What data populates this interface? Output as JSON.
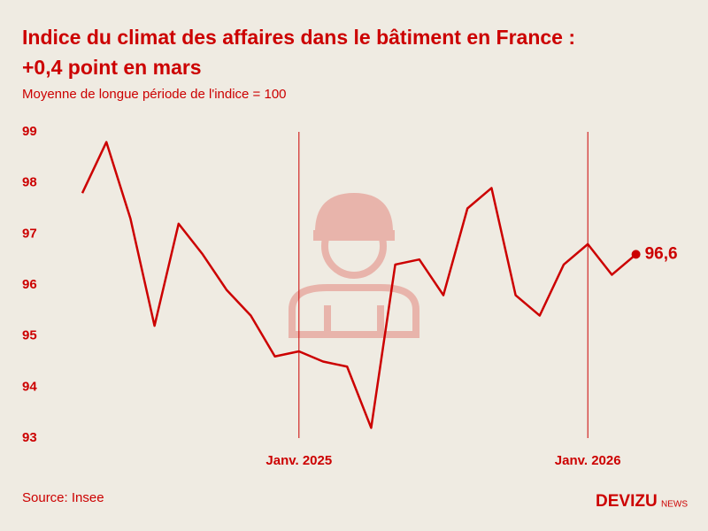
{
  "chart_data": {
    "type": "line",
    "title": [
      "Indice du climat des affaires dans le bâtiment en France :",
      "+0,4 point en mars"
    ],
    "subtitle": "Moyenne de longue période de l'indice = 100",
    "categories": [
      null,
      null,
      null,
      null,
      null,
      null,
      null,
      null,
      null,
      "Janv. 2025",
      null,
      null,
      null,
      null,
      null,
      null,
      null,
      null,
      null,
      null,
      null,
      "Janv. 2026",
      null,
      null
    ],
    "values": [
      97.8,
      98.8,
      97.3,
      95.2,
      97.2,
      96.6,
      95.9,
      95.4,
      94.6,
      94.7,
      94.5,
      94.4,
      93.2,
      96.4,
      96.5,
      95.8,
      97.5,
      97.9,
      95.8,
      95.4,
      96.4,
      96.8,
      96.2,
      96.6
    ],
    "value_labels": [
      null,
      null,
      null,
      null,
      null,
      null,
      null,
      null,
      null,
      null,
      null,
      null,
      null,
      null,
      null,
      null,
      null,
      null,
      null,
      null,
      null,
      null,
      null,
      "96,6"
    ],
    "color": "#cc0000",
    "ylim": [
      93,
      99
    ],
    "yticks": [
      93,
      94,
      95,
      96,
      97,
      98,
      99
    ],
    "source": "Source: Insee",
    "brand": "DEVIZU",
    "brand_suffix": "NEWS"
  }
}
